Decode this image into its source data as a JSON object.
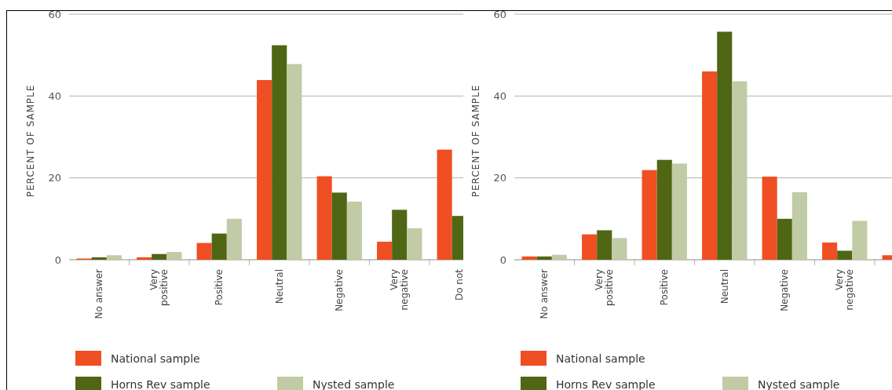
{
  "chart_data": [
    {
      "type": "bar",
      "ylabel": "PERCENT OF SAMPLE",
      "categories": [
        "No answer",
        "Very\npositive",
        "Positive",
        "Neutral",
        "Negative",
        "Very\nnegative",
        "Do not"
      ],
      "ylim": [
        0,
        60
      ],
      "yticks": [
        0,
        20,
        40,
        60
      ],
      "grid": "y",
      "legend": "bottom",
      "series": [
        {
          "name": "National sample",
          "color": "#ef4f23",
          "values": [
            0.3,
            0.6,
            4.1,
            43.9,
            20.4,
            4.4,
            26.9
          ]
        },
        {
          "name": "Horns Rev sample",
          "color": "#4f6614",
          "values": [
            0.6,
            1.4,
            6.4,
            52.4,
            16.4,
            12.2,
            10.7
          ]
        },
        {
          "name": "Nysted sample",
          "color": "#c1cba6",
          "values": [
            1.1,
            1.9,
            10.0,
            47.8,
            14.2,
            7.7,
            null
          ]
        }
      ]
    },
    {
      "type": "bar",
      "ylabel": "PERCENT OF SAMPLE",
      "categories": [
        "No answer",
        "Very\npositive",
        "Positive",
        "Neutral",
        "Negative",
        "Very\nnegative",
        null
      ],
      "ylim": [
        0,
        60
      ],
      "yticks": [
        0,
        20,
        40,
        60
      ],
      "grid": "y",
      "legend": "bottom",
      "series": [
        {
          "name": "National sample",
          "color": "#ef4f23",
          "values": [
            0.8,
            6.2,
            21.9,
            46.0,
            20.3,
            4.2,
            1.1
          ]
        },
        {
          "name": "Horns Rev sample",
          "color": "#4f6614",
          "values": [
            0.8,
            7.2,
            24.4,
            55.7,
            10.0,
            2.2,
            null
          ]
        },
        {
          "name": "Nysted sample",
          "color": "#c1cba6",
          "values": [
            1.2,
            5.3,
            23.5,
            43.6,
            16.5,
            9.5,
            null
          ]
        }
      ]
    }
  ]
}
